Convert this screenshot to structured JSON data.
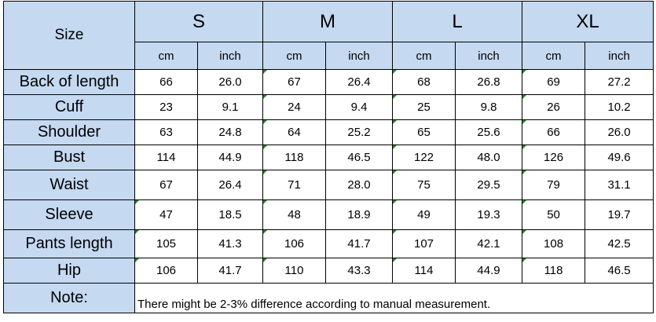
{
  "table": {
    "corner_label": "Size",
    "sizes": [
      "S",
      "M",
      "L",
      "XL"
    ],
    "units": [
      "cm",
      "inch",
      "cm",
      "inch",
      "cm",
      "inch",
      "cm",
      "inch"
    ],
    "rows": [
      {
        "label": "Back of length",
        "values": [
          "66",
          "26.0",
          "67",
          "26.4",
          "68",
          "26.8",
          "69",
          "27.2"
        ]
      },
      {
        "label": "Cuff",
        "values": [
          "23",
          "9.1",
          "24",
          "9.4",
          "25",
          "9.8",
          "26",
          "10.2"
        ]
      },
      {
        "label": "Shoulder",
        "values": [
          "63",
          "24.8",
          "64",
          "25.2",
          "65",
          "25.6",
          "66",
          "26.0"
        ]
      },
      {
        "label": "Bust",
        "values": [
          "114",
          "44.9",
          "118",
          "46.5",
          "122",
          "48.0",
          "126",
          "49.6"
        ]
      },
      {
        "label": "Waist",
        "values": [
          "67",
          "26.4",
          "71",
          "28.0",
          "75",
          "29.5",
          "79",
          "31.1"
        ]
      },
      {
        "label": "Sleeve",
        "values": [
          "47",
          "18.5",
          "48",
          "18.9",
          "49",
          "19.3",
          "50",
          "19.7"
        ]
      },
      {
        "label": "Pants length",
        "values": [
          "105",
          "41.3",
          "106",
          "41.7",
          "107",
          "42.1",
          "108",
          "42.5"
        ]
      },
      {
        "label": "Hip",
        "values": [
          "106",
          "41.7",
          "110",
          "43.3",
          "114",
          "44.9",
          "118",
          "46.5"
        ]
      }
    ],
    "note_label": "Note:",
    "note_text": "There might be 2-3% difference according to manual measurement."
  },
  "colors": {
    "header_fill": "#c5d9f1",
    "border": "#000000",
    "cell_marker": "#1f8a1f"
  }
}
